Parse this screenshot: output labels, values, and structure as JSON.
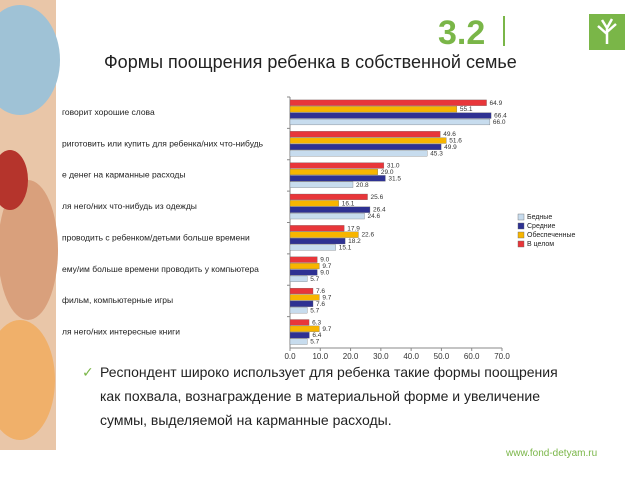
{
  "slide_number": "3.2",
  "title": "Формы поощрения ребенка в собственной семье",
  "bullet": "Респондент широко использует для ребенка такие формы поощрения как похвала, вознаграждение в материальной форме и увеличение суммы, выделяемой на карманные расходы.",
  "url": "www.fond-detyam.ru",
  "chart_data": {
    "type": "bar",
    "orientation": "horizontal",
    "categories": [
      "говорит хорошие слова",
      "риготовить или купить для ребенка/них что-нибудь",
      "е денег на карманные расходы",
      "ля него/них что-нибудь из одежды",
      "проводить с ребенком/детьми больше времени",
      "ему/им больше времени проводить у компьютера",
      "фильм, компьютерные игры",
      "ля него/них интересные книги"
    ],
    "series": [
      {
        "name": "Бедные",
        "color": "#c7dcee",
        "values": [
          66.0,
          45.3,
          20.8,
          24.6,
          15.1,
          5.7,
          5.7,
          5.7
        ],
        "value_labels": [
          "66.0",
          "45.3",
          "20.8",
          "24.6",
          "15.1",
          "5.7",
          "5.7",
          "5.7"
        ]
      },
      {
        "name": "Средние",
        "color": "#2e3192",
        "values": [
          66.4,
          49.9,
          31.5,
          26.4,
          18.2,
          9.0,
          7.6,
          6.4
        ],
        "value_labels": [
          "66.4",
          "49.9",
          "31.5",
          "26.4",
          "18.2",
          "9.0",
          "7.6",
          "6.4"
        ]
      },
      {
        "name": "Обеспеченные",
        "color": "#f7b500",
        "values": [
          55.1,
          51.6,
          29.0,
          16.1,
          22.6,
          9.7,
          9.7,
          9.7
        ],
        "value_labels": [
          "55.1",
          "51.6",
          "29.0",
          "16.1",
          "22.6",
          "9.7",
          "9.7",
          "9.7"
        ]
      },
      {
        "name": "В целом",
        "color": "#e8363a",
        "values": [
          64.9,
          49.6,
          31.0,
          25.6,
          17.9,
          9.0,
          7.6,
          6.3
        ],
        "value_labels": [
          "64.9",
          "49.6",
          "31.0",
          "25.6",
          "17.9",
          "9.0",
          "7.6",
          "6.3"
        ]
      }
    ],
    "xlim": [
      0,
      70
    ],
    "xticks": [
      {
        "value": 0,
        "label": "0.0"
      },
      {
        "value": 10,
        "label": "10.0"
      },
      {
        "value": 20,
        "label": "20.0"
      },
      {
        "value": 30,
        "label": "30.0"
      },
      {
        "value": 40,
        "label": "40.0"
      },
      {
        "value": 50,
        "label": "50.0"
      },
      {
        "value": 60,
        "label": "60.0"
      },
      {
        "value": 70,
        "label": "70.0"
      }
    ],
    "legend": "right"
  }
}
